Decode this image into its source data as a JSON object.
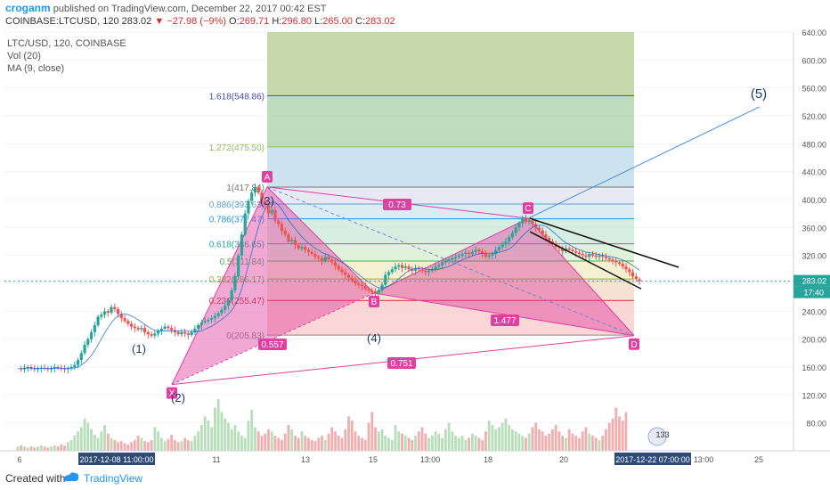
{
  "header": {
    "username": "croganm",
    "published_text": "published on TradingView.com, December 22, 2017 00:42 EST",
    "symbol": "COINBASE:LTCUSD, 120",
    "last": "283.02",
    "arrow": "▼",
    "change": "−27.98 (−9%)",
    "o_label": "O:",
    "o": "269.71",
    "h_label": "H:",
    "h": "296.80",
    "l_label": "L:",
    "l": "265.00",
    "c_label": "C:",
    "c": "283.02"
  },
  "legend": [
    "LTC/USD, 120, COINBASE",
    "Vol (20)",
    "MA (9, close)"
  ],
  "footer": {
    "created_with": "Created with",
    "brand": "TradingView"
  },
  "colors": {
    "up": "#26a69a",
    "down": "#ef5350",
    "harmonic": "#e040a0",
    "fib_line": "#9e9e9e",
    "trend": "#4a90d9"
  },
  "chart_data": {
    "type": "candlestick",
    "symbol": "LTC/USD",
    "interval": "120",
    "ylim": [
      40,
      640
    ],
    "y_ticks": [
      80,
      120,
      160,
      200,
      240,
      280,
      320,
      360,
      400,
      440,
      480,
      520,
      560,
      600,
      640
    ],
    "x_tick_labels": [
      "6",
      "2017-12-08 11:00:00",
      "11",
      "13",
      "15",
      "13:00",
      "18",
      "20",
      "2017-12-22 07:00:00",
      "13:00",
      "25"
    ],
    "price_tag": "283.02",
    "time_tag": "17:40",
    "fib_levels": [
      {
        "ratio": "0",
        "price": 205.83,
        "label": "0(205.83)"
      },
      {
        "ratio": "0.236",
        "price": 255.47,
        "label": "0.236(255.47)"
      },
      {
        "ratio": "0.382",
        "price": 286.17,
        "label": "0.382(286.17)"
      },
      {
        "ratio": "0.5",
        "price": 311.84,
        "label": "0.5(311.84)"
      },
      {
        "ratio": "0.618",
        "price": 336.65,
        "label": "0.618(336.65)"
      },
      {
        "ratio": "0.786",
        "price": 372.47,
        "label": "0.786(372.47)"
      },
      {
        "ratio": "0.886",
        "price": 393.63,
        "label": "0.886(393.63)"
      },
      {
        "ratio": "1",
        "price": 417.84,
        "label": "1(417.84)"
      },
      {
        "ratio": "1.272",
        "price": 475.5,
        "label": "1.272(475.50)"
      },
      {
        "ratio": "1.618",
        "price": 548.86,
        "label": "1.618(548.86)"
      }
    ],
    "pattern_points": {
      "X": 135,
      "A": 418,
      "B": 266,
      "C": 373,
      "D": 205
    },
    "pattern_ratios": {
      "XA_AB": "0.557",
      "AB_BC": "0.73",
      "BC_CD": "1.477",
      "XA_AD": "0.751"
    },
    "elliott_labels": [
      "(1)",
      "(2)",
      "(3)",
      "(4)",
      "(5)"
    ],
    "badge": "133",
    "price_series": [
      158,
      157,
      159,
      160,
      158,
      157,
      158,
      159,
      158,
      157,
      158,
      160,
      159,
      158,
      157,
      158,
      160,
      163,
      170,
      180,
      192,
      200,
      210,
      220,
      232,
      235,
      240,
      238,
      246,
      243,
      236,
      230,
      226,
      222,
      218,
      216,
      214,
      216,
      210,
      207,
      205,
      208,
      212,
      215,
      218,
      216,
      213,
      210,
      207,
      210,
      208,
      206,
      210,
      215,
      220,
      224,
      226,
      228,
      230,
      233,
      237,
      242,
      248,
      256,
      270,
      290,
      320,
      350,
      380,
      398,
      410,
      418,
      410,
      398,
      392,
      380,
      385,
      370,
      365,
      355,
      350,
      340,
      342,
      335,
      330,
      332,
      328,
      325,
      322,
      318,
      316,
      312,
      318,
      314,
      310,
      305,
      300,
      296,
      292,
      288,
      284,
      280,
      278,
      276,
      272,
      270,
      268,
      266,
      270,
      278,
      292,
      296,
      300,
      304,
      306,
      302,
      304,
      300,
      298,
      302,
      300,
      298,
      296,
      298,
      300,
      304,
      306,
      310,
      312,
      314,
      316,
      318,
      320,
      322,
      324,
      322,
      325,
      328,
      326,
      322,
      318,
      320,
      322,
      328,
      332,
      336,
      340,
      346,
      352,
      360,
      366,
      373,
      368,
      370,
      365,
      360,
      356,
      350,
      345,
      340,
      336,
      332,
      330,
      326,
      330,
      328,
      326,
      324,
      322,
      320,
      318,
      322,
      320,
      318,
      320,
      318,
      316,
      314,
      312,
      310,
      308,
      304,
      300,
      296,
      290,
      286,
      283
    ],
    "volume_series": [
      4,
      5,
      4,
      3,
      4,
      3,
      4,
      5,
      4,
      3,
      4,
      5,
      4,
      6,
      5,
      8,
      10,
      14,
      18,
      22,
      30,
      26,
      20,
      15,
      12,
      18,
      24,
      16,
      12,
      10,
      8,
      9,
      7,
      6,
      8,
      10,
      14,
      12,
      9,
      8,
      10,
      22,
      18,
      12,
      9,
      11,
      15,
      10,
      8,
      9,
      12,
      10,
      9,
      14,
      18,
      24,
      32,
      28,
      22,
      40,
      48,
      36,
      30,
      26,
      20,
      24,
      18,
      14,
      12,
      28,
      38,
      22,
      18,
      14,
      16,
      20,
      18,
      14,
      12,
      10,
      16,
      24,
      20,
      14,
      12,
      18,
      14,
      12,
      10,
      9,
      12,
      14,
      10,
      16,
      22,
      18,
      14,
      12,
      20,
      32,
      28,
      18,
      14,
      12,
      10,
      26,
      36,
      22,
      18,
      20,
      14,
      12,
      10,
      24,
      18,
      16,
      14,
      12,
      10,
      14,
      18,
      22,
      16,
      12,
      14,
      18,
      16,
      12,
      20,
      26,
      18,
      14,
      12,
      14,
      10,
      12,
      16,
      14,
      12,
      10,
      18,
      28,
      24,
      20,
      22,
      26,
      30,
      24,
      20,
      18,
      16,
      14,
      12,
      16,
      22,
      26,
      20,
      18,
      14,
      16,
      20,
      24,
      18,
      14,
      12,
      20,
      16,
      14,
      12,
      18,
      22,
      16,
      14,
      12,
      10,
      14,
      20,
      26,
      30,
      40,
      32,
      28,
      36
    ]
  }
}
